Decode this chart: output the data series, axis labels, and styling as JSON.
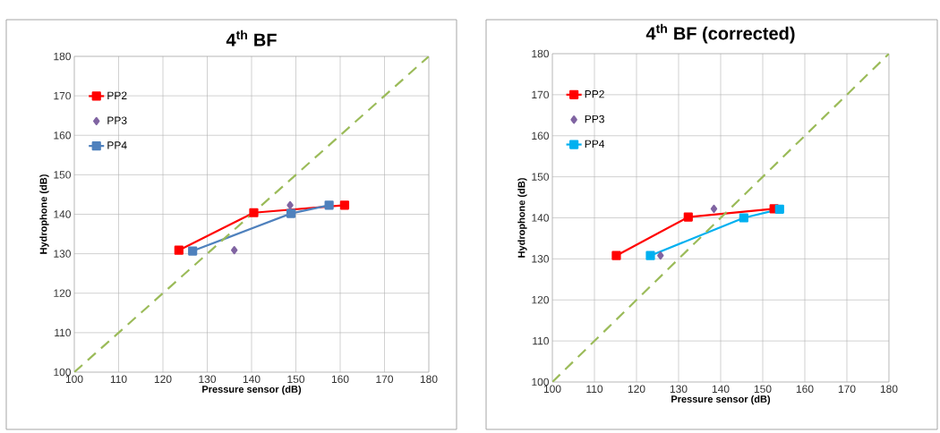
{
  "chart_data": [
    {
      "type": "line",
      "title": "4$^{th}$ BF",
      "xlabel": "Pressure sensor  (dB)",
      "ylabel": "Hydrophone (dB)",
      "xlim": [
        100,
        180
      ],
      "ylim": [
        100,
        180
      ],
      "xticks": [
        100,
        110,
        120,
        130,
        140,
        150,
        160,
        170,
        180
      ],
      "yticks": [
        100,
        110,
        120,
        130,
        140,
        150,
        160,
        170,
        180
      ],
      "grid": true,
      "legend": "top left",
      "series": [
        {
          "name": "PP2",
          "color": "#ff0000",
          "marker": "square",
          "x": [
            123.6,
            140.5,
            161.0
          ],
          "values": [
            130.9,
            140.4,
            142.3
          ]
        },
        {
          "name": "PP3",
          "color": "#8064a2",
          "marker": "diamond",
          "type": "scatter",
          "x": [
            136.1,
            148.7
          ],
          "values": [
            130.9,
            142.3
          ]
        },
        {
          "name": "PP4",
          "color": "#4f81bd",
          "marker": "square",
          "x": [
            126.7,
            148.9,
            157.5
          ],
          "values": [
            130.7,
            140.2,
            142.3
          ]
        },
        {
          "color": "#9bbb59",
          "line_style": "dashed",
          "marker": "none",
          "x": [
            100,
            180
          ],
          "values": [
            100,
            180
          ]
        }
      ]
    },
    {
      "type": "line",
      "title": "4$^{th}$ BF (corrected)",
      "xlabel": "Pressure sensor  (dB)",
      "ylabel": "Hydrophone (dB)",
      "xlim": [
        100,
        180
      ],
      "ylim": [
        100,
        180
      ],
      "xticks": [
        100,
        110,
        120,
        130,
        140,
        150,
        160,
        170,
        180
      ],
      "yticks": [
        100,
        110,
        120,
        130,
        140,
        150,
        160,
        170,
        180
      ],
      "grid": true,
      "legend": "top left",
      "series": [
        {
          "name": "PP2",
          "color": "#ff0000",
          "marker": "square",
          "x": [
            115.2,
            132.3,
            152.7
          ],
          "values": [
            130.8,
            140.2,
            142.2
          ]
        },
        {
          "name": "PP3",
          "color": "#8064a2",
          "marker": "diamond",
          "type": "scatter",
          "x": [
            125.7,
            138.4
          ],
          "values": [
            130.8,
            142.2
          ]
        },
        {
          "name": "PP4",
          "color": "#00b0f0",
          "marker": "square",
          "x": [
            123.3,
            145.5,
            154.0
          ],
          "values": [
            130.8,
            140.0,
            142.1
          ]
        },
        {
          "color": "#9bbb59",
          "line_style": "dashed",
          "marker": "none",
          "x": [
            100,
            180
          ],
          "values": [
            100,
            180
          ]
        }
      ]
    }
  ]
}
